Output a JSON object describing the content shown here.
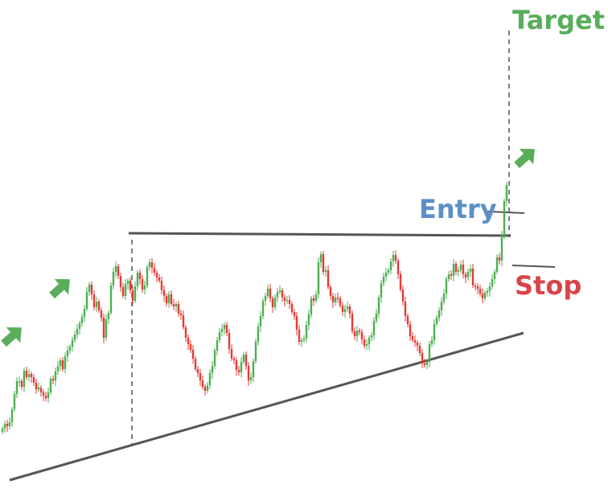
{
  "chart_data": {
    "type": "candlestick",
    "title": "",
    "xlabel": "",
    "ylabel": "",
    "axes_visible": false,
    "grid": false,
    "candle_up_color": "#4caf50",
    "candle_down_color": "#e53935",
    "annotations": {
      "target_label": "Target",
      "entry_label": "Entry",
      "stop_label": "Stop",
      "target_color": "#5aad5a",
      "entry_color": "#5b8fc7",
      "stop_color": "#d9434a",
      "arrow_color": "#5aad5a",
      "arrow_icon": "up-right-arrow-icon"
    },
    "closes": [
      67,
      73,
      70,
      75,
      91,
      110,
      126,
      126,
      119,
      139,
      131,
      135,
      131,
      124,
      116,
      118,
      112,
      108,
      105,
      112,
      129,
      127,
      138,
      145,
      152,
      141,
      157,
      164,
      169,
      177,
      184,
      191,
      198,
      206,
      216,
      237,
      246,
      234,
      218,
      225,
      214,
      205,
      180,
      203,
      211,
      245,
      262,
      269,
      257,
      243,
      232,
      247,
      251,
      239,
      226,
      244,
      261,
      253,
      240,
      245,
      268,
      274,
      267,
      261,
      255,
      251,
      239,
      232,
      223,
      234,
      222,
      219,
      222,
      210,
      208,
      193,
      180,
      172,
      165,
      154,
      141,
      136,
      127,
      119,
      114,
      121,
      136,
      145,
      164,
      177,
      187,
      191,
      196,
      186,
      166,
      154,
      152,
      140,
      137,
      150,
      159,
      145,
      127,
      131,
      151,
      175,
      194,
      207,
      226,
      232,
      241,
      229,
      218,
      230,
      237,
      239,
      230,
      226,
      227,
      222,
      212,
      207,
      190,
      175,
      177,
      179,
      196,
      209,
      229,
      226,
      234,
      274,
      284,
      262,
      264,
      243,
      232,
      224,
      230,
      229,
      220,
      212,
      216,
      219,
      210,
      188,
      182,
      189,
      187,
      178,
      170,
      172,
      180,
      183,
      201,
      210,
      230,
      248,
      256,
      261,
      264,
      275,
      283,
      276,
      259,
      240,
      225,
      207,
      197,
      182,
      177,
      174,
      170,
      161,
      148,
      146,
      150,
      172,
      177,
      197,
      205,
      214,
      225,
      235,
      253,
      259,
      257,
      272,
      262,
      264,
      271,
      259,
      255,
      262,
      266,
      245,
      244,
      241,
      235,
      229,
      236,
      238,
      244,
      253,
      262,
      280,
      276,
      307,
      350,
      370
    ]
  }
}
